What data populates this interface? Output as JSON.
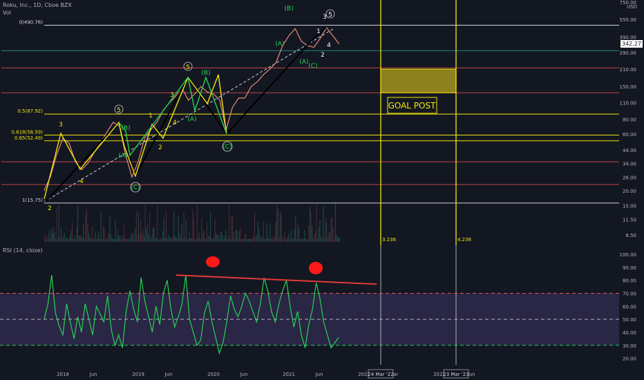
{
  "header": {
    "symbol_line": "Roku, Inc., 1D, Cboe BZX",
    "vol_label": "Vol",
    "rsi_label": "RSI (14, close)"
  },
  "chart_data": [
    {
      "type": "line",
      "title": "Roku, Inc., 1D, Cboe BZX",
      "scale": "log",
      "currency_label": "USD",
      "price_axis_ticks": [
        550,
        390,
        290,
        210,
        150,
        110,
        80,
        60,
        44,
        34,
        26,
        20,
        15,
        11.5,
        8.5
      ],
      "price_axis_top_label": "750.00",
      "current_price": "342.27",
      "time_axis_ticks": [
        "2018",
        "Jun",
        "2019",
        "Jun",
        "2020",
        "Jun",
        "2021",
        "Jun",
        "2022",
        "Mar",
        "2023",
        "Jun"
      ],
      "time_axis_highlights": [
        "24 Mar '22",
        "23 Mar '23"
      ],
      "fib_levels": [
        {
          "label": "0(490.76)",
          "price": 490.76,
          "color": "#d1d4dc"
        },
        {
          "label": "0.5(87.92)",
          "price": 87.92,
          "color": "#f2e70a"
        },
        {
          "label": "0.618(58.59)",
          "price": 58.59,
          "color": "#f2e70a"
        },
        {
          "label": "0.65(52.49)",
          "price": 52.49,
          "color": "#f2e70a"
        },
        {
          "label": "1(15.75)",
          "price": 15.75,
          "color": "#d1d4dc"
        }
      ],
      "extra_levels": [
        {
          "label": "",
          "price": 300,
          "color": "#26a69a"
        },
        {
          "label": "",
          "price": 215,
          "color": "#ef5350"
        },
        {
          "label": "",
          "price": 133,
          "color": "#ef5350"
        },
        {
          "label": "",
          "price": 35,
          "color": "#ef5350"
        },
        {
          "label": "",
          "price": 22.5,
          "color": "#ef5350"
        }
      ],
      "goal_box": {
        "label": "GOAL POST",
        "price_low": 133,
        "price_high": 210
      },
      "fib_time_labels": [
        "3.236",
        "4.236"
      ],
      "wave_labels_yellow": [
        "2",
        "3",
        "4",
        "5",
        "1",
        "2",
        "3",
        "4",
        "5",
        "3",
        "5",
        "1",
        "2",
        "4"
      ],
      "wave_labels_green": [
        "(B)",
        "(A)",
        "(C)",
        "(A)",
        "(B)",
        "(C)",
        "(A)",
        "(B)",
        "(C)",
        "(A)"
      ],
      "price_path": [
        [
          "2017-10",
          20
        ],
        [
          "2017-11",
          26
        ],
        [
          "2017-12",
          40
        ],
        [
          "2018-01",
          55
        ],
        [
          "2018-02",
          50
        ],
        [
          "2018-03",
          35
        ],
        [
          "2018-04",
          30
        ],
        [
          "2018-05",
          34
        ],
        [
          "2018-06",
          42
        ],
        [
          "2018-07",
          50
        ],
        [
          "2018-08",
          62
        ],
        [
          "2018-09",
          75
        ],
        [
          "2018-10",
          70
        ],
        [
          "2018-11",
          40
        ],
        [
          "2018-12",
          26
        ],
        [
          "2019-01",
          35
        ],
        [
          "2019-02",
          55
        ],
        [
          "2019-03",
          65
        ],
        [
          "2019-04",
          75
        ],
        [
          "2019-05",
          95
        ],
        [
          "2019-06",
          110
        ],
        [
          "2019-07",
          125
        ],
        [
          "2019-08",
          145
        ],
        [
          "2019-09",
          115
        ],
        [
          "2019-10",
          130
        ],
        [
          "2019-11",
          150
        ],
        [
          "2019-12",
          135
        ],
        [
          "2020-01",
          130
        ],
        [
          "2020-02",
          115
        ],
        [
          "2020-03",
          65
        ],
        [
          "2020-04",
          100
        ],
        [
          "2020-05",
          120
        ],
        [
          "2020-06",
          120
        ],
        [
          "2020-07",
          150
        ],
        [
          "2020-08",
          165
        ],
        [
          "2020-09",
          190
        ],
        [
          "2020-10",
          210
        ],
        [
          "2020-11",
          240
        ],
        [
          "2020-12",
          330
        ],
        [
          "2021-01",
          400
        ],
        [
          "2021-02",
          460
        ],
        [
          "2021-03",
          360
        ],
        [
          "2021-04",
          330
        ],
        [
          "2021-05",
          320
        ],
        [
          "2021-06",
          380
        ],
        [
          "2021-07",
          470
        ],
        [
          "2021-08",
          400
        ],
        [
          "2021-09",
          342
        ]
      ]
    },
    {
      "type": "line",
      "title": "RSI (14, close)",
      "ylim": [
        15,
        100
      ],
      "y_ticks": [
        100,
        90,
        80,
        70,
        60,
        50,
        40,
        30,
        20
      ],
      "levels": [
        70,
        50,
        30
      ],
      "trendline": [
        [
          "2019-07",
          84
        ],
        [
          "2022-03",
          77
        ]
      ],
      "values": [
        50,
        62,
        84,
        55,
        45,
        38,
        62,
        48,
        35,
        52,
        40,
        62,
        50,
        38,
        60,
        54,
        48,
        68,
        42,
        30,
        38,
        28,
        56,
        72,
        58,
        48,
        82,
        64,
        52,
        40,
        60,
        46,
        70,
        80,
        58,
        44,
        52,
        62,
        84,
        50,
        40,
        30,
        34,
        55,
        64,
        48,
        36,
        24,
        32,
        48,
        68,
        58,
        52,
        60,
        70,
        64,
        56,
        48,
        62,
        82,
        72,
        56,
        48,
        62,
        72,
        80,
        60,
        44,
        56,
        38,
        28,
        46,
        58,
        78,
        66,
        48,
        38,
        28,
        32,
        36
      ]
    }
  ],
  "colors": {
    "background": "#131722",
    "wave_yellow": "#f2e70a",
    "wave_green": "#26d452",
    "rsi_line": "#26d452",
    "rsi_band": "#2a2645",
    "trend_red": "#e53935"
  }
}
